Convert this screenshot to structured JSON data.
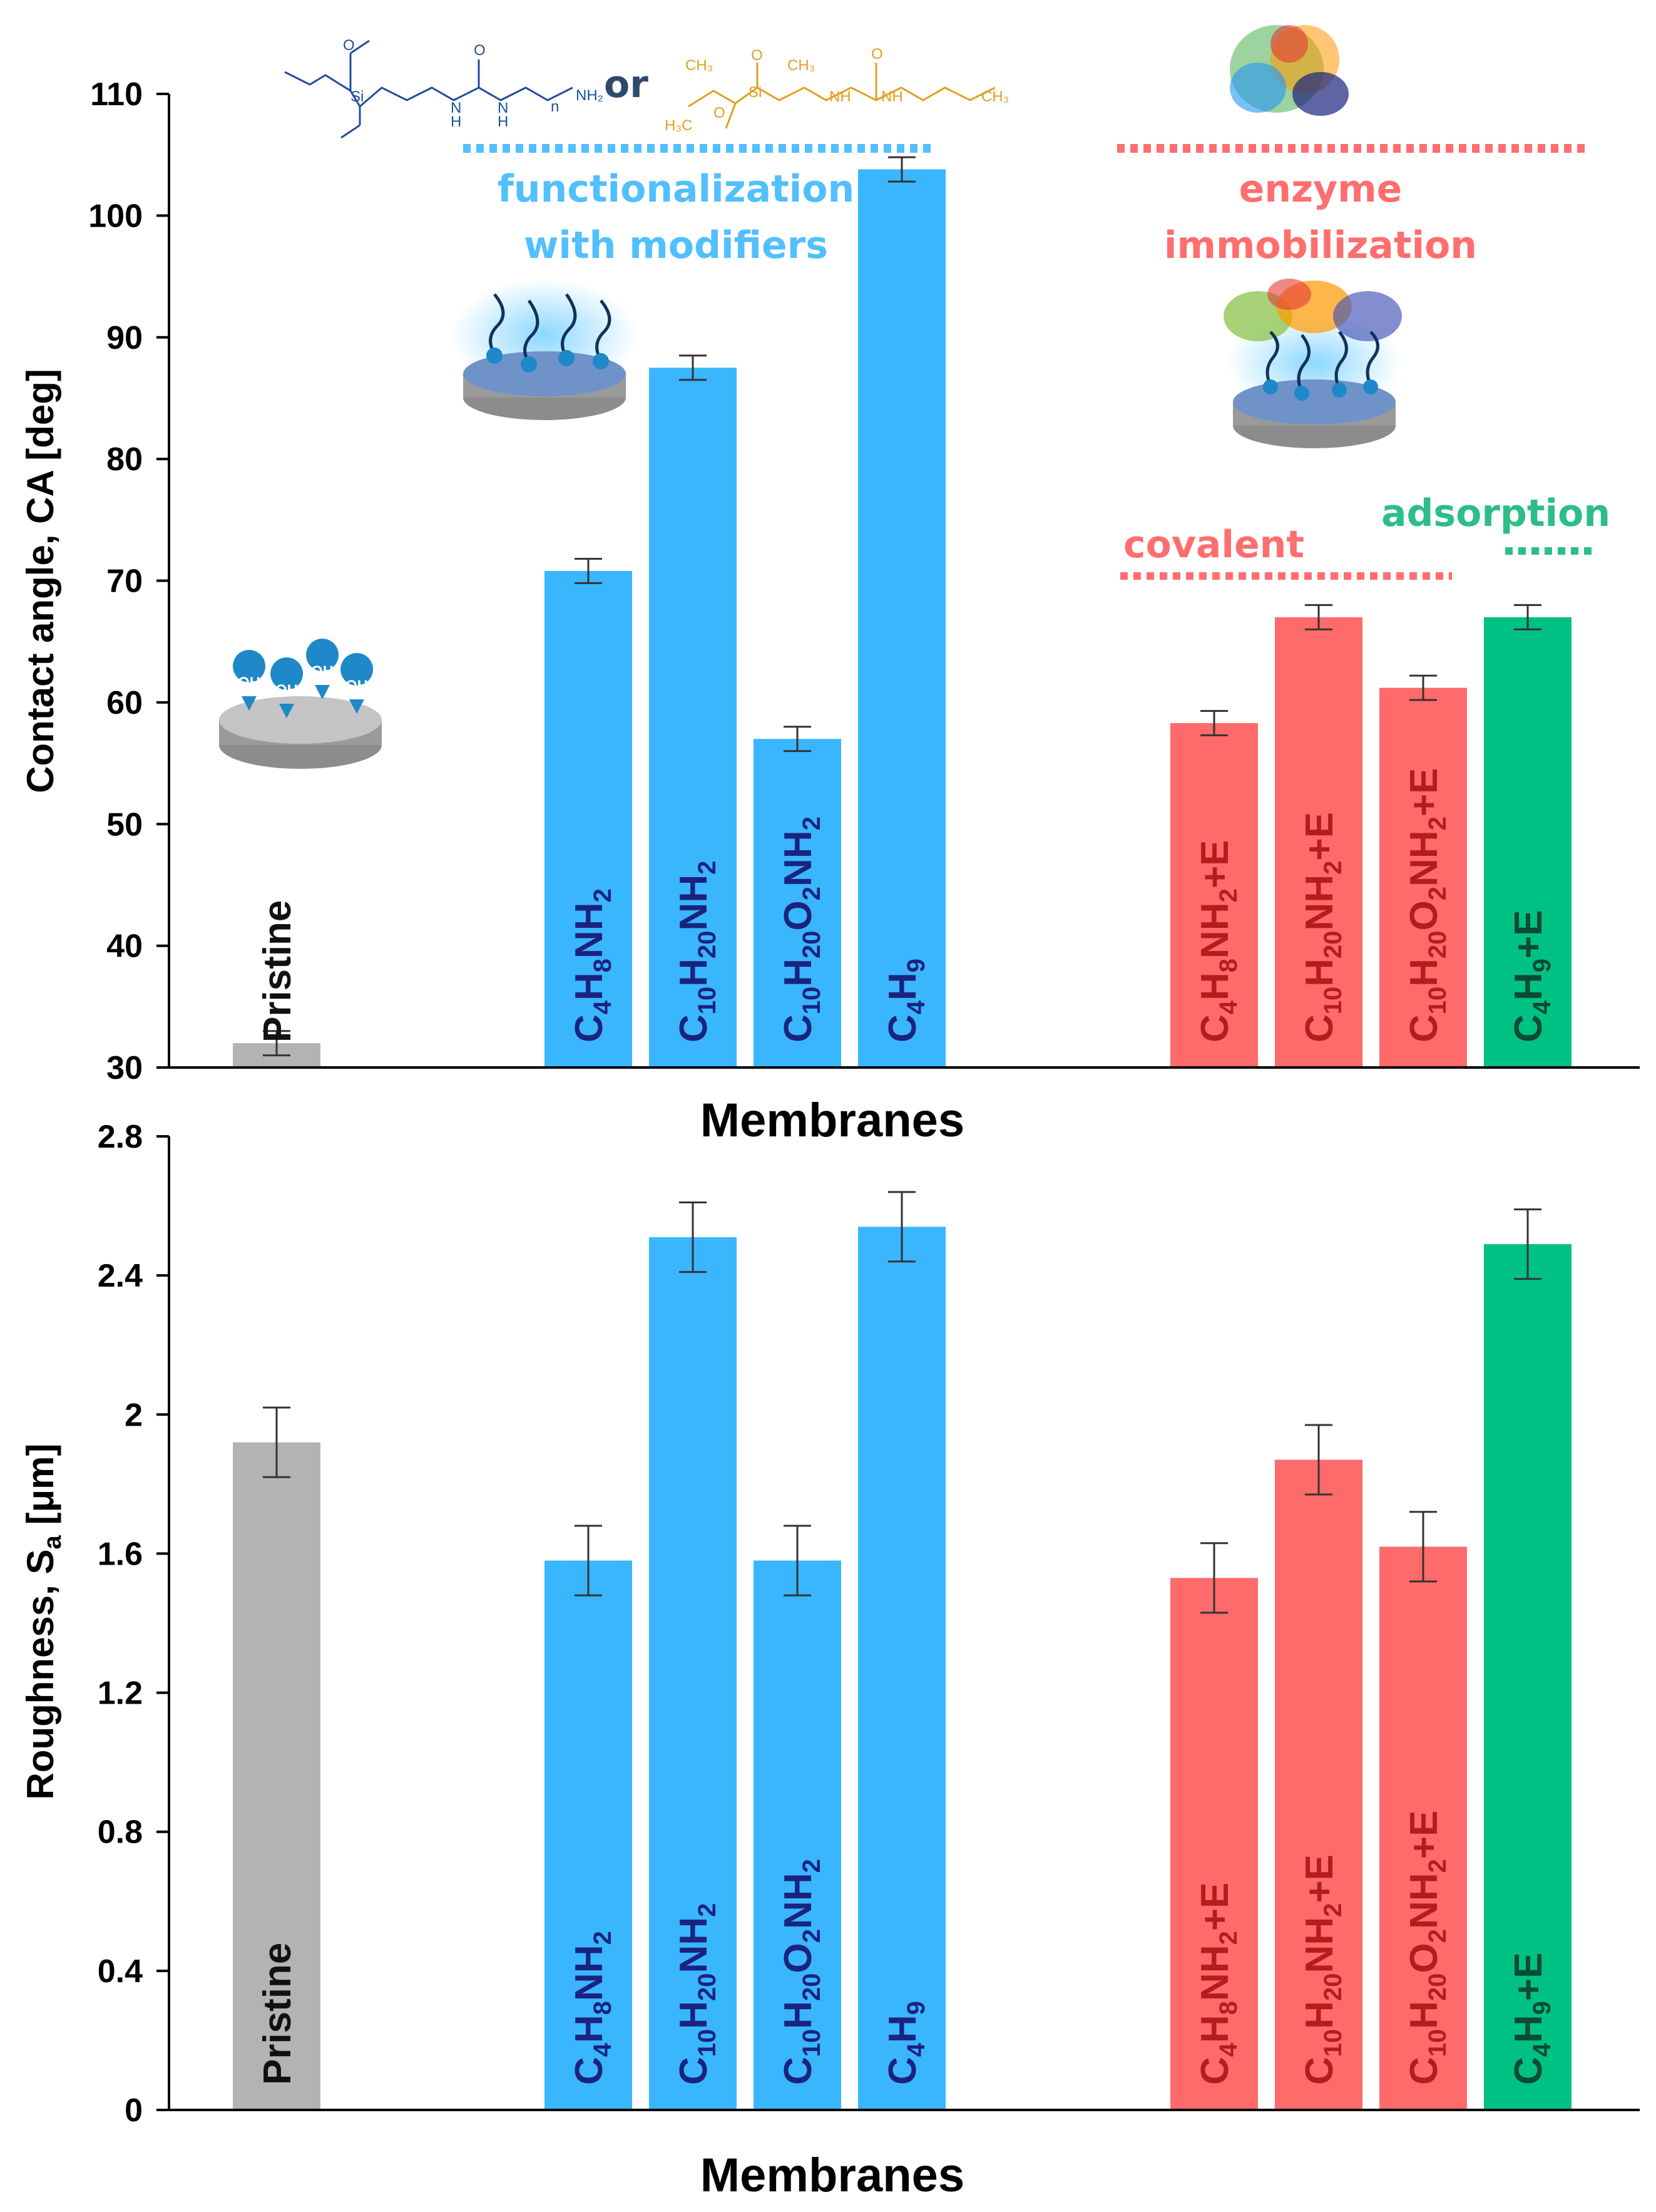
{
  "colors": {
    "pristine": "#B3B3B3",
    "modifier": "#3AB6FF",
    "covalent": "#FF6B6B",
    "adsorption": "#00C184",
    "modifier_label": "#1A237E",
    "covalent_label": "#B71C1C",
    "adsorption_label": "#0B4A33",
    "pristine_label": "#111111",
    "annot_modifier": "#52BFFF",
    "annot_covalent": "#FF6E6E",
    "annot_adsorption": "#2DBE88",
    "chem_blue": "#1F4E9C",
    "chem_orange": "#E0A020"
  },
  "annotations": {
    "or": "or",
    "functionalization_line1": "functionalization",
    "functionalization_line2": "with modifiers",
    "enzyme_line1": "enzyme",
    "enzyme_line2": "immobilization",
    "covalent": "covalent",
    "adsorption": "adsorption",
    "oh": "OH",
    "chem": {
      "et1": "O",
      "si1": "Si",
      "n1": "N",
      "h1": "H",
      "o1": "O",
      "n2": "N",
      "h2": "H",
      "n_label": "n",
      "nh2": "NH₂",
      "ch3a": "CH₃",
      "ch3b": "CH₃",
      "o2": "O",
      "si2": "Si",
      "nh_a": "NH",
      "nh_b": "NH",
      "o3": "O",
      "ch3c": "CH₃",
      "h3co": "H₃C",
      "o4": "O"
    }
  },
  "chart_data": [
    {
      "type": "bar",
      "xlabel": "Membranes",
      "ylabel": "Contact angle, CA [deg]",
      "ylim": [
        30,
        110
      ],
      "yticks": [
        30,
        40,
        50,
        60,
        70,
        80,
        90,
        100,
        110
      ],
      "categories": [
        "Pristine",
        "C4H8NH2",
        "C10H20NH2",
        "C10H20O2NH2",
        "C4H9",
        "C4H8NH2+E",
        "C10H20NH2+E",
        "C10H20O2NH2+E",
        "C4H9+E"
      ],
      "values": [
        32.0,
        70.8,
        87.5,
        57.0,
        103.8,
        58.3,
        67.0,
        61.2,
        67.0
      ],
      "errors": [
        1.0,
        1.0,
        1.0,
        1.0,
        1.0,
        1.0,
        1.0,
        1.0,
        1.0
      ],
      "groups": [
        "pristine",
        "modifier",
        "modifier",
        "modifier",
        "modifier",
        "covalent",
        "covalent",
        "covalent",
        "adsorption"
      ]
    },
    {
      "type": "bar",
      "xlabel": "Membranes",
      "ylabel": "Roughness, Sa [μm]",
      "ylim": [
        0,
        2.8
      ],
      "yticks": [
        0,
        0.4,
        0.8,
        1.2,
        1.6,
        2,
        2.4,
        2.8
      ],
      "categories": [
        "Pristine",
        "C4H8NH2",
        "C10H20NH2",
        "C10H20O2NH2",
        "C4H9",
        "C4H8NH2+E",
        "C10H20NH2+E",
        "C10H20O2NH2+E",
        "C4H9+E"
      ],
      "values": [
        1.92,
        1.58,
        2.51,
        1.58,
        2.54,
        1.53,
        1.87,
        1.62,
        2.49
      ],
      "errors": [
        0.1,
        0.1,
        0.1,
        0.1,
        0.1,
        0.1,
        0.1,
        0.1,
        0.1
      ],
      "groups": [
        "pristine",
        "modifier",
        "modifier",
        "modifier",
        "modifier",
        "covalent",
        "covalent",
        "covalent",
        "adsorption"
      ]
    }
  ]
}
